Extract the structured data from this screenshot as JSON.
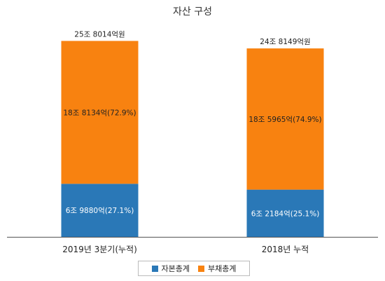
{
  "chart_data": {
    "type": "bar",
    "stacked": true,
    "title": "자산 구성",
    "xlabel": "",
    "ylabel": "",
    "categories": [
      "2019년 3분기(누적)",
      "2018년 누적"
    ],
    "totals": [
      25.8014,
      24.8149
    ],
    "total_labels": [
      "25조 8014억원",
      "24조 8149억원"
    ],
    "ylim": [
      0,
      27.5
    ],
    "grid": false,
    "legend_position": "bottom",
    "series": [
      {
        "name": "자본총계",
        "color": "#2a78b7",
        "values": [
          6.988,
          6.2184
        ],
        "labels": [
          "6조 9880억(27.1%)",
          "6조 2184억(25.1%)"
        ]
      },
      {
        "name": "부채총계",
        "color": "#f88210",
        "values": [
          18.8134,
          18.5965
        ],
        "labels": [
          "18조 8134억(72.9%)",
          "18조 5965억(74.9%)"
        ]
      }
    ]
  }
}
